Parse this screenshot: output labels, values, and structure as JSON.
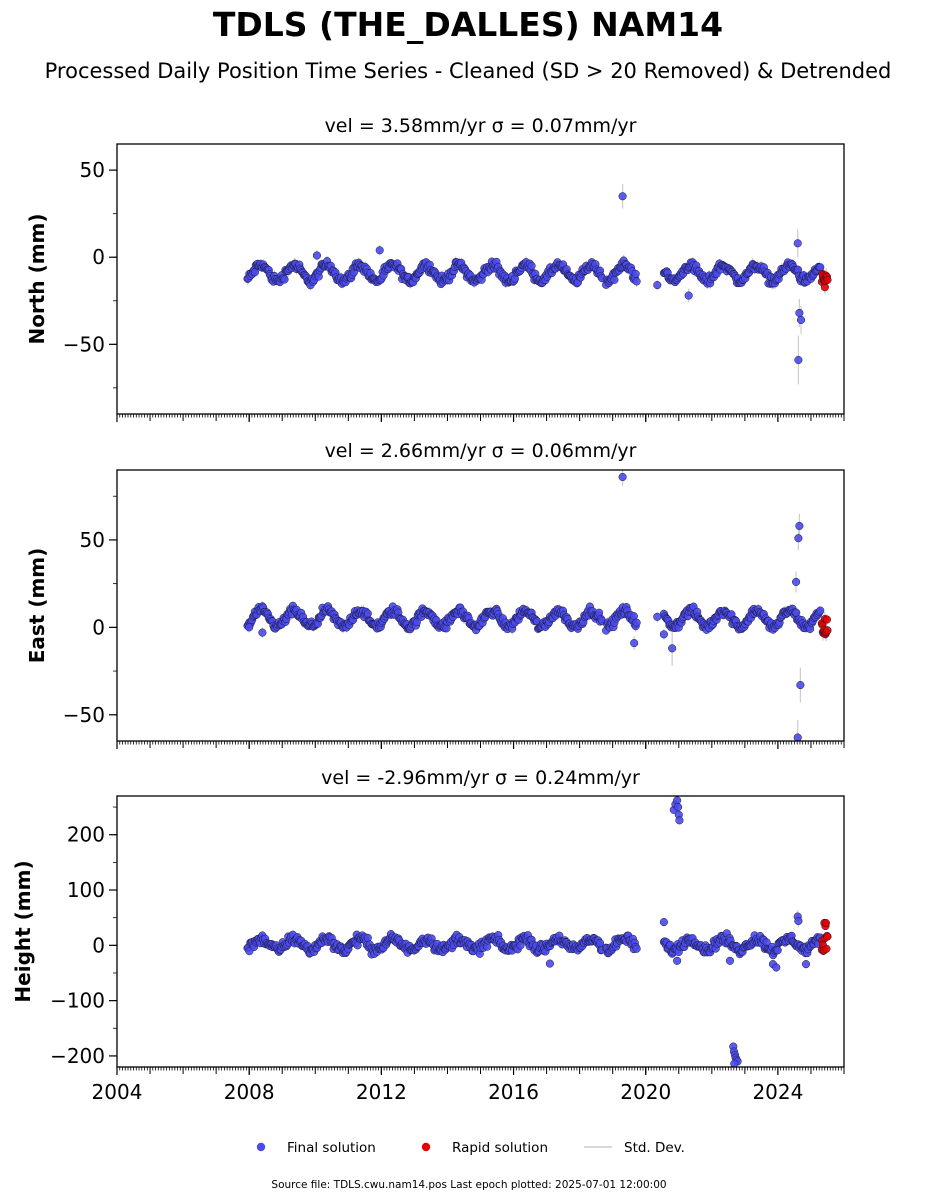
{
  "title": "TDLS (THE_DALLES) NAM14",
  "subtitle": "Processed Daily Position Time Series - Cleaned (SD > 20 Removed) & Detrended",
  "source_text": "Source file: TDLS.cwu.nam14.pos  Last epoch plotted: 2025-07-01 12:00:00",
  "legend": [
    {
      "label": "Final solution",
      "color": "#4a4aee",
      "marker": "dot"
    },
    {
      "label": "Rapid solution",
      "color": "#e60000",
      "marker": "dot"
    },
    {
      "label": "Std. Dev.",
      "color": "#cccccc",
      "marker": "line"
    }
  ],
  "colors": {
    "final": "#4a4aee",
    "rapid": "#e60000",
    "edge": "#1a1a33",
    "stddev": "#cccccc"
  },
  "chart_data": [
    {
      "type": "scatter",
      "panel": "north",
      "title": "vel = 3.58mm/yr   σ = 0.07mm/yr",
      "xlabel": "",
      "ylabel": "North (mm)",
      "xlim": [
        2004.0,
        2026.0
      ],
      "ylim": [
        -90,
        65
      ],
      "yticks": [
        -50,
        0,
        50
      ],
      "ytick_labels": [
        "−50",
        "0",
        "50"
      ],
      "xticks": [
        2004,
        2008,
        2012,
        2016,
        2020,
        2024
      ],
      "xtick_labels": [],
      "final_series": {
        "amplitude": 4.5,
        "offset": -9,
        "noise": 2.2,
        "segments": [
          [
            2007.95,
            2018.7
          ],
          [
            2018.8,
            2019.75
          ],
          [
            2020.55,
            2025.3
          ]
        ]
      },
      "final_outliers": [
        {
          "x": 2019.3,
          "y": 35,
          "sd": 7
        },
        {
          "x": 2024.6,
          "y": 8,
          "sd": 8
        },
        {
          "x": 2024.65,
          "y": -32,
          "sd": 8
        },
        {
          "x": 2024.7,
          "y": -36,
          "sd": 8
        },
        {
          "x": 2024.62,
          "y": -59,
          "sd": 14
        },
        {
          "x": 2020.35,
          "y": -16,
          "sd": 3
        },
        {
          "x": 2021.3,
          "y": -22,
          "sd": 4
        },
        {
          "x": 2011.95,
          "y": 4,
          "sd": 3
        },
        {
          "x": 2010.05,
          "y": 1,
          "sd": 3
        }
      ],
      "rapid": {
        "x_start": 2025.33,
        "x_end": 2025.5,
        "y_min": -18,
        "y_max": -9
      }
    },
    {
      "type": "scatter",
      "panel": "east",
      "title": "vel = 2.66mm/yr   σ = 0.06mm/yr",
      "xlabel": "",
      "ylabel": "East (mm)",
      "xlim": [
        2004.0,
        2026.0
      ],
      "ylim": [
        -65,
        90
      ],
      "yticks": [
        -50,
        0,
        50
      ],
      "ytick_labels": [
        "−50",
        "0",
        "50"
      ],
      "xticks": [
        2004,
        2008,
        2012,
        2016,
        2020,
        2024
      ],
      "xtick_labels": [],
      "final_series": {
        "amplitude": 4.5,
        "offset": 5,
        "noise": 2.2,
        "segments": [
          [
            2007.95,
            2018.7
          ],
          [
            2018.8,
            2019.75
          ],
          [
            2020.55,
            2025.3
          ]
        ]
      },
      "final_outliers": [
        {
          "x": 2019.3,
          "y": 86,
          "sd": 5
        },
        {
          "x": 2024.65,
          "y": 58,
          "sd": 7
        },
        {
          "x": 2024.62,
          "y": 51,
          "sd": 7
        },
        {
          "x": 2024.55,
          "y": 26,
          "sd": 6
        },
        {
          "x": 2024.68,
          "y": -33,
          "sd": 10
        },
        {
          "x": 2024.6,
          "y": -63,
          "sd": 10
        },
        {
          "x": 2019.65,
          "y": -9,
          "sd": 4
        },
        {
          "x": 2020.8,
          "y": -12,
          "sd": 10
        },
        {
          "x": 2020.55,
          "y": -4,
          "sd": 3
        },
        {
          "x": 2008.0,
          "y": 0,
          "sd": 3
        },
        {
          "x": 2008.4,
          "y": -3,
          "sd": 3
        },
        {
          "x": 2020.35,
          "y": 6,
          "sd": 3
        }
      ],
      "rapid": {
        "x_start": 2025.33,
        "x_end": 2025.5,
        "y_min": -4,
        "y_max": 6
      }
    },
    {
      "type": "scatter",
      "panel": "height",
      "title": "vel = -2.96mm/yr   σ = 0.24mm/yr",
      "xlabel": "",
      "ylabel": "Height (mm)",
      "xlim": [
        2004.0,
        2026.0
      ],
      "ylim": [
        -220,
        270
      ],
      "yticks": [
        -200,
        -100,
        0,
        100,
        200
      ],
      "ytick_labels": [
        "−200",
        "−100",
        "0",
        "100",
        "200"
      ],
      "xticks": [
        2004,
        2008,
        2012,
        2016,
        2020,
        2024
      ],
      "xtick_labels": [
        "2004",
        "2008",
        "2012",
        "2016",
        "2020",
        "2024"
      ],
      "final_series": {
        "amplitude": 10,
        "offset": 2,
        "noise": 8,
        "segments": [
          [
            2007.95,
            2018.7
          ],
          [
            2018.8,
            2019.75
          ],
          [
            2020.55,
            2025.3
          ]
        ]
      },
      "final_outliers": [
        {
          "x": 2020.85,
          "y": 245,
          "sd": 6
        },
        {
          "x": 2020.9,
          "y": 255,
          "sd": 6
        },
        {
          "x": 2020.95,
          "y": 262,
          "sd": 6
        },
        {
          "x": 2021.0,
          "y": 236,
          "sd": 6
        },
        {
          "x": 2021.02,
          "y": 226,
          "sd": 6
        },
        {
          "x": 2020.98,
          "y": 250,
          "sd": 6
        },
        {
          "x": 2022.65,
          "y": -183,
          "sd": 5
        },
        {
          "x": 2022.67,
          "y": -192,
          "sd": 5
        },
        {
          "x": 2022.7,
          "y": -198,
          "sd": 5
        },
        {
          "x": 2022.72,
          "y": -203,
          "sd": 5
        },
        {
          "x": 2022.75,
          "y": -207,
          "sd": 5
        },
        {
          "x": 2022.78,
          "y": -210,
          "sd": 5
        },
        {
          "x": 2022.68,
          "y": -214,
          "sd": 5
        },
        {
          "x": 2024.6,
          "y": 52,
          "sd": 12
        },
        {
          "x": 2024.62,
          "y": 44,
          "sd": 12
        },
        {
          "x": 2023.85,
          "y": -34,
          "sd": 8
        },
        {
          "x": 2023.95,
          "y": -40,
          "sd": 8
        },
        {
          "x": 2024.85,
          "y": -34,
          "sd": 8
        },
        {
          "x": 2020.55,
          "y": 42,
          "sd": 6
        },
        {
          "x": 2017.1,
          "y": -33,
          "sd": 6
        },
        {
          "x": 2020.95,
          "y": -28,
          "sd": 6
        },
        {
          "x": 2022.55,
          "y": -28,
          "sd": 6
        }
      ],
      "rapid": {
        "x_start": 2025.33,
        "x_end": 2025.5,
        "y_min": -14,
        "y_max": 44
      }
    }
  ]
}
